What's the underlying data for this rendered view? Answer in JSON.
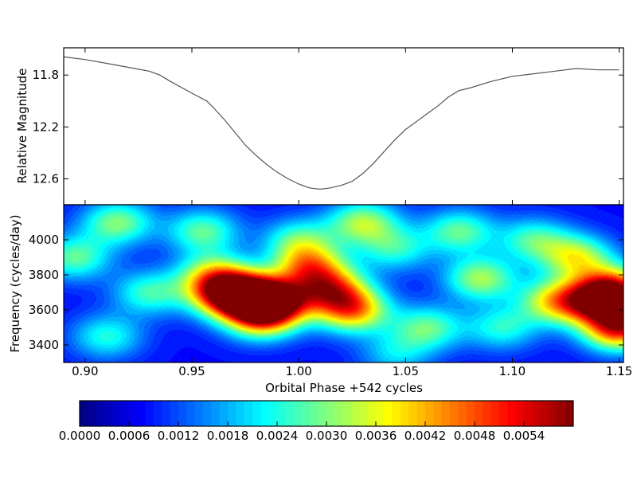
{
  "chart_data": [
    {
      "type": "line",
      "ylabel": "Relative Magnitude",
      "xlim": [
        0.89,
        1.152
      ],
      "ylim": [
        12.8,
        11.59
      ],
      "y_inverted": true,
      "yticks": [
        "11.8",
        "12.2",
        "12.6"
      ],
      "line_color": "#555555",
      "series": [
        {
          "x": [
            0.89,
            0.9,
            0.91,
            0.92,
            0.93,
            0.935,
            0.94,
            0.95,
            0.957,
            0.96,
            0.965,
            0.97,
            0.975,
            0.98,
            0.985,
            0.99,
            0.995,
            1.0,
            1.005,
            1.01,
            1.015,
            1.02,
            1.025,
            1.03,
            1.035,
            1.04,
            1.045,
            1.05,
            1.055,
            1.06,
            1.065,
            1.07,
            1.075,
            1.08,
            1.09,
            1.1,
            1.11,
            1.12,
            1.13,
            1.14,
            1.15
          ],
          "y": [
            11.66,
            11.68,
            11.71,
            11.74,
            11.77,
            11.8,
            11.85,
            11.94,
            12.0,
            12.05,
            12.14,
            12.24,
            12.34,
            12.42,
            12.49,
            12.55,
            12.6,
            12.64,
            12.67,
            12.68,
            12.67,
            12.65,
            12.62,
            12.56,
            12.48,
            12.39,
            12.3,
            12.22,
            12.16,
            12.1,
            12.04,
            11.97,
            11.92,
            11.9,
            11.85,
            11.81,
            11.79,
            11.77,
            11.75,
            11.76,
            11.76
          ]
        }
      ]
    },
    {
      "type": "heatmap",
      "xlabel": "Orbital Phase +542 cycles",
      "ylabel": "Frequency (cycles/day)",
      "xlim": [
        0.89,
        1.152
      ],
      "ylim": [
        3300,
        4200
      ],
      "xticks": [
        "0.90",
        "0.95",
        "1.00",
        "1.05",
        "1.10",
        "1.15"
      ],
      "yticks": [
        "3400",
        "3600",
        "3800",
        "4000"
      ],
      "colormap": "jet",
      "zlim": [
        0,
        0.006
      ],
      "blobs": [
        {
          "x": 0.895,
          "y": 3900,
          "z": 0.002
        },
        {
          "x": 0.915,
          "y": 4100,
          "z": 0.0022
        },
        {
          "x": 0.93,
          "y": 3700,
          "z": 0.0018
        },
        {
          "x": 0.91,
          "y": 3450,
          "z": 0.0016
        },
        {
          "x": 0.955,
          "y": 4050,
          "z": 0.002
        },
        {
          "x": 0.96,
          "y": 3800,
          "z": 0.0024
        },
        {
          "x": 0.965,
          "y": 3690,
          "z": 0.0032
        },
        {
          "x": 0.975,
          "y": 3690,
          "z": 0.0034
        },
        {
          "x": 0.988,
          "y": 3650,
          "z": 0.0046
        },
        {
          "x": 0.982,
          "y": 3560,
          "z": 0.003
        },
        {
          "x": 1.005,
          "y": 3850,
          "z": 0.003
        },
        {
          "x": 1.015,
          "y": 3720,
          "z": 0.0032
        },
        {
          "x": 1.025,
          "y": 3600,
          "z": 0.0034
        },
        {
          "x": 1.0,
          "y": 4000,
          "z": 0.0018
        },
        {
          "x": 1.03,
          "y": 4100,
          "z": 0.0024
        },
        {
          "x": 1.045,
          "y": 3950,
          "z": 0.0016
        },
        {
          "x": 1.06,
          "y": 3500,
          "z": 0.002
        },
        {
          "x": 1.075,
          "y": 4050,
          "z": 0.002
        },
        {
          "x": 1.085,
          "y": 3780,
          "z": 0.0024
        },
        {
          "x": 1.095,
          "y": 3500,
          "z": 0.0016
        },
        {
          "x": 1.11,
          "y": 4000,
          "z": 0.0018
        },
        {
          "x": 1.12,
          "y": 3650,
          "z": 0.0028
        },
        {
          "x": 1.13,
          "y": 3900,
          "z": 0.0026
        },
        {
          "x": 1.14,
          "y": 3650,
          "z": 0.0036
        },
        {
          "x": 1.15,
          "y": 3500,
          "z": 0.0044
        },
        {
          "x": 1.148,
          "y": 3720,
          "z": 0.0036
        },
        {
          "x": 1.045,
          "y": 3350,
          "z": 0.0012
        }
      ]
    },
    {
      "type": "colorbar",
      "range": [
        0,
        0.006
      ],
      "ticks": [
        "0.0000",
        "0.0006",
        "0.0012",
        "0.0018",
        "0.0024",
        "0.0030",
        "0.0036",
        "0.0042",
        "0.0048",
        "0.0054"
      ]
    }
  ]
}
